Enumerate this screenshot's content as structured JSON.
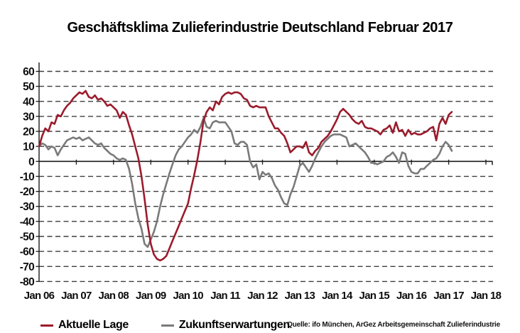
{
  "page": {
    "title": "Geschäftsklima Zulieferindustrie Deutschland Februar 2017",
    "source": "Quelle: ifo München, ArGez Arbeitsgemeinschaft Zulieferindustrie"
  },
  "colors": {
    "aktuelle_lage": "#9B1B2C",
    "zukunftserwartungen": "#7A7A7A",
    "gridline": "#3d3d3d",
    "axis": "#1a1a1a",
    "text": "#0d0d0d"
  },
  "legend": {
    "items": [
      {
        "label": "Aktuelle Lage",
        "color": "#9B1B2C"
      },
      {
        "label": "Zukunftserwartungen",
        "color": "#7A7A7A"
      }
    ]
  },
  "chart_data": {
    "type": "line",
    "title": "Geschäftsklima Zulieferindustrie Deutschland Februar 2017",
    "xlabel": "",
    "ylabel": "",
    "ylim": [
      -80,
      60
    ],
    "y_ticks": [
      60,
      50,
      40,
      30,
      20,
      10,
      0,
      -10,
      -20,
      -30,
      -40,
      -50,
      -60,
      -70,
      -80
    ],
    "x_tick_labels": [
      "Jan 06",
      "Jan 07",
      "Jan 08",
      "Jan 09",
      "Jan 10",
      "Jan 11",
      "Jan 12",
      "Jan 13",
      "Jan 14",
      "Jan 15",
      "Jan 16",
      "Jan 17",
      "Jan 18"
    ],
    "x_range": [
      "Jan 2006",
      "Feb 2017"
    ],
    "frequency": "monthly",
    "grid": "horizontal-dashed, zero line solid",
    "legend_position": "bottom-left",
    "series": [
      {
        "name": "Aktuelle Lage",
        "color": "#9B1B2C",
        "values": [
          10,
          17,
          22,
          20,
          26,
          25,
          31,
          30,
          34,
          37,
          39,
          42,
          44,
          46,
          45,
          47,
          43,
          42,
          44,
          41,
          42,
          40,
          37,
          38,
          36,
          34,
          29,
          33,
          31,
          24,
          18,
          10,
          2,
          -10,
          -25,
          -42,
          -55,
          -62,
          -65,
          -66,
          -65,
          -63,
          -58,
          -53,
          -48,
          -43,
          -38,
          -33,
          -28,
          -18,
          -9,
          1,
          13,
          27,
          33,
          36,
          34,
          40,
          38,
          43,
          45,
          46,
          45,
          46,
          46,
          45,
          42,
          41,
          37,
          36,
          37,
          36,
          36,
          36,
          30,
          26,
          22,
          22,
          19,
          17,
          12,
          6,
          8,
          10,
          10,
          9,
          13,
          6,
          4,
          7,
          9,
          13,
          15,
          17,
          20,
          24,
          28,
          33,
          35,
          33,
          31,
          28,
          26,
          25,
          27,
          23,
          22,
          22,
          21,
          20,
          18,
          21,
          22,
          24,
          19,
          26,
          20,
          21,
          17,
          21,
          18,
          19,
          18,
          18,
          19,
          20,
          22,
          23,
          14,
          25,
          29,
          25,
          31,
          33
        ]
      },
      {
        "name": "Zukunftserwartungen",
        "color": "#7A7A7A",
        "values": [
          10,
          12,
          11,
          8,
          10,
          9,
          4,
          8,
          11,
          14,
          15,
          16,
          15,
          16,
          14,
          15,
          16,
          14,
          12,
          11,
          12,
          9,
          7,
          5,
          4,
          2,
          1,
          2,
          1,
          -5,
          -15,
          -28,
          -38,
          -45,
          -55,
          -57,
          -52,
          -47,
          -40,
          -30,
          -22,
          -15,
          -8,
          -2,
          4,
          8,
          10,
          13,
          16,
          18,
          21,
          19,
          23,
          29,
          23,
          22,
          26,
          27,
          26,
          26,
          26,
          23,
          20,
          12,
          11,
          13,
          13,
          11,
          0,
          -4,
          -2,
          -12,
          -7,
          -9,
          -8,
          -11,
          -16,
          -19,
          -24,
          -28,
          -29,
          -22,
          -17,
          -10,
          -3,
          -1,
          -4,
          -7,
          -3,
          2,
          6,
          10,
          13,
          15,
          17,
          18,
          18,
          18,
          17,
          16,
          10,
          11,
          12,
          10,
          8,
          6,
          3,
          -1,
          -1,
          -2,
          -1,
          0,
          3,
          4,
          6,
          3,
          -1,
          6,
          5,
          -3,
          -7,
          -8,
          -8,
          -5,
          -5,
          -3,
          -1,
          1,
          2,
          5,
          10,
          13,
          11,
          7
        ]
      }
    ]
  }
}
